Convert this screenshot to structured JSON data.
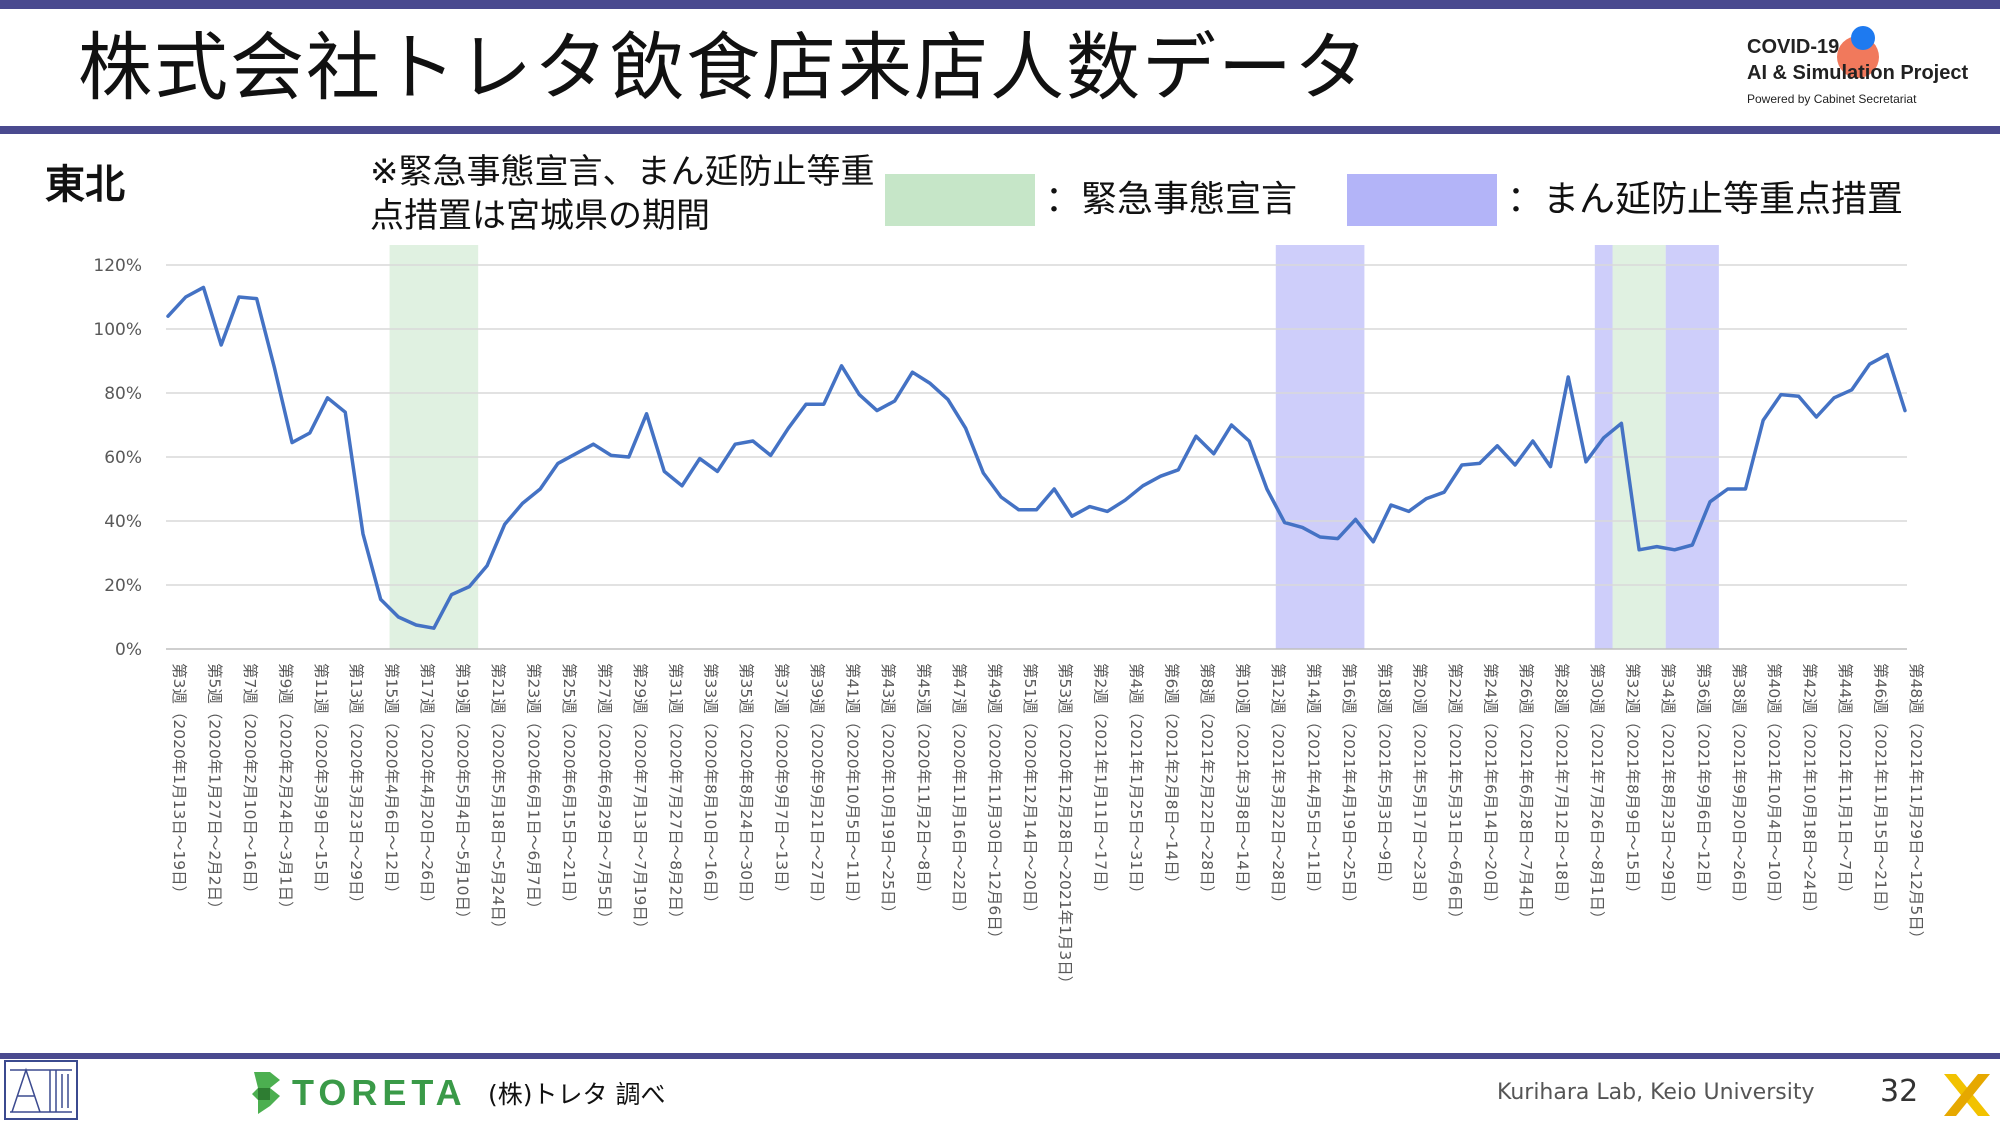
{
  "header": {
    "title": "株式会社トレタ飲食店来店人数データ",
    "logo_line1": "COVID-19",
    "logo_line2": "AI & Simulation Project",
    "logo_line3": "Powered by Cabinet Secretariat"
  },
  "region": "東北",
  "note": "※緊急事態宣言、まん延防止等重点措置は宮城県の期間",
  "legend": {
    "emergency_label": "：緊急事態宣言",
    "emergency_color": "#c6e6c8",
    "priority_label": "：まん延防止等重点措置",
    "priority_color": "#b3b4f8"
  },
  "footer": {
    "source": "(株)トレタ 調べ",
    "lab": "Kurihara Lab, Keio University",
    "page": "32",
    "toreta_logo": "TORETA"
  },
  "chart_data": {
    "type": "line",
    "series": [
      {
        "color": "#4472c4",
        "values": [
          104,
          110,
          113,
          95,
          110,
          109.5,
          88,
          64.5,
          67.5,
          78.5,
          74,
          36,
          15.5,
          10,
          7.5,
          6.5,
          17,
          19.5,
          26,
          39,
          45.5,
          50,
          58,
          61,
          64,
          60.5,
          60,
          73.5,
          55.5,
          51,
          59.5,
          55.5,
          64,
          65,
          60.5,
          69,
          76.5,
          76.5,
          88.5,
          79.5,
          74.5,
          77.5,
          86.5,
          83,
          78,
          69,
          55,
          47.5,
          43.5,
          43.5,
          50,
          41.5,
          44.5,
          43,
          46.5,
          51,
          54,
          56,
          66.5,
          61,
          70,
          65,
          50,
          39.5,
          38,
          35,
          34.5,
          40.5,
          33.5,
          45,
          43,
          47,
          49,
          57.5,
          58,
          63.5,
          57.5,
          65,
          57,
          85,
          58.5,
          66,
          70.5,
          31,
          32,
          31,
          32.5,
          46,
          50,
          50,
          71.5,
          79.5,
          79,
          72.5,
          78.5,
          81,
          89,
          92,
          74.5
        ]
      }
    ],
    "x_tick_labels": [
      "第3週（2020年1月13日～19日）",
      "第5週（2020年1月27日～2月2日）",
      "第7週（2020年2月10日～16日）",
      "第9週（2020年2月24日～3月1日）",
      "第11週（2020年3月9日～15日）",
      "第13週（2020年3月23日～29日）",
      "第15週（2020年4月6日～12日）",
      "第17週（2020年4月20日～26日）",
      "第19週（2020年5月4日～5月10日）",
      "第21週（2020年5月18日～5月24日）",
      "第23週（2020年6月1日～6月7日）",
      "第25週（2020年6月15日～21日）",
      "第27週（2020年6月29日～7月5日）",
      "第29週（2020年7月13日～7月19日）",
      "第31週（2020年7月27日～8月2日）",
      "第33週（2020年8月10日～16日）",
      "第35週（2020年8月24日～30日）",
      "第37週（2020年9月7日～13日）",
      "第39週（2020年9月21日～27日）",
      "第41週（2020年10月5日～11日）",
      "第43週（2020年10月19日～25日）",
      "第45週（2020年11月2日～8日）",
      "第47週（2020年11月16日～22日）",
      "第49週（2020年11月30日～12月6日）",
      "第51週（2020年12月14日～20日）",
      "第53週（2020年12月28日～2021年1月3日）",
      "第2週（2021年1月11日～17日）",
      "第4週（2021年1月25日～31日）",
      "第6週（2021年2月8日～14日）",
      "第8週（2021年2月22日～28日）",
      "第10週（2021年3月8日～14日）",
      "第12週（2021年3月22日～28日）",
      "第14週（2021年4月5日～11日）",
      "第16週（2021年4月19日～25日）",
      "第18週（2021年5月3日～9日）",
      "第20週（2021年5月17日～23日）",
      "第22週（2021年5月31日～6月6日）",
      "第24週（2021年6月14日～20日）",
      "第26週（2021年6月28日～7月4日）",
      "第28週（2021年7月12日～18日）",
      "第30週（2021年7月26日～8月1日）",
      "第32週（2021年8月9日～15日）",
      "第34週（2021年8月23日～29日）",
      "第36週（2021年9月6日～12日）",
      "第38週（2021年9月20日～26日）",
      "第40週（2021年10月4日～10日）",
      "第42週（2021年10月18日～24日）",
      "第44週（2021年11月1日～7日）",
      "第46週（2021年11月15日～21日）",
      "第48週（2021年11月29日～12月5日）"
    ],
    "y_tick_labels": [
      "0%",
      "20%",
      "40%",
      "60%",
      "80%",
      "100%",
      "120%"
    ],
    "ylim": [
      0,
      120
    ],
    "grid": true,
    "shaded_periods": [
      {
        "kind": "emergency",
        "from": "第15週（2020年4月6日～12日）",
        "to": "第20週"
      },
      {
        "kind": "priority",
        "from": "第14週（2021年4月5日～11日）",
        "to": "第19週"
      },
      {
        "kind": "priority",
        "from": "第32週（2021年8月9日～15日）",
        "to": "第33週"
      },
      {
        "kind": "emergency",
        "from": "第34週（2021年8月23日～29日）",
        "to": "第36週（2021年9月6日～12日）"
      },
      {
        "kind": "priority",
        "from": "第36週（2021年9月6日～12日）",
        "to": "第39週"
      }
    ],
    "shaded_index_ranges": [
      [
        12.5,
        17.5
      ],
      [
        62.5,
        67.5
      ],
      [
        80.5,
        81.5
      ],
      [
        81.5,
        84.5
      ],
      [
        84.5,
        87.5
      ]
    ]
  }
}
